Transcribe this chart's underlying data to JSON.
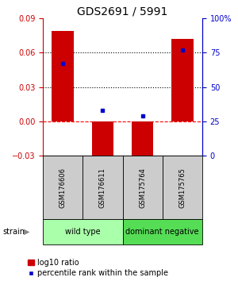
{
  "title": "GDS2691 / 5991",
  "samples": [
    "GSM176606",
    "GSM176611",
    "GSM175764",
    "GSM175765"
  ],
  "log10_ratio": [
    0.079,
    -0.032,
    -0.031,
    0.072
  ],
  "percentile_rank": [
    67,
    33,
    29,
    77
  ],
  "groups": [
    {
      "label": "wild type",
      "samples": [
        0,
        1
      ],
      "color": "#aaffaa"
    },
    {
      "label": "dominant negative",
      "samples": [
        2,
        3
      ],
      "color": "#55dd55"
    }
  ],
  "group_label": "strain",
  "bar_color": "#cc0000",
  "dot_color": "#0000cc",
  "left_axis_color": "#cc0000",
  "right_axis_color": "#0000cc",
  "ylim_left": [
    -0.03,
    0.09
  ],
  "ylim_right": [
    0,
    100
  ],
  "yticks_left": [
    -0.03,
    0,
    0.03,
    0.06,
    0.09
  ],
  "yticks_right": [
    0,
    25,
    50,
    75,
    100
  ],
  "hlines": [
    0.03,
    0.06
  ],
  "zero_line": 0.0,
  "title_fontsize": 10,
  "tick_fontsize": 7,
  "sample_fontsize": 6,
  "group_fontsize": 7,
  "legend_fontsize": 7,
  "sample_color": "#cccccc",
  "legend_red_label": "log10 ratio",
  "legend_blue_label": "percentile rank within the sample"
}
